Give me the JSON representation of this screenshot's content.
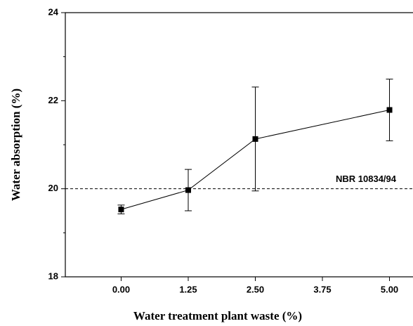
{
  "chart_data": {
    "type": "line",
    "x_label": "Water treatment plant waste (%)",
    "y_label": "Water absorption (%)",
    "x": [
      0,
      1.25,
      2.5,
      5
    ],
    "values": [
      19.53,
      19.97,
      21.13,
      21.79
    ],
    "errors": [
      0.1,
      0.47,
      1.18,
      0.7
    ],
    "color": "#000000",
    "xlim": [
      -1.04,
      6.04
    ],
    "ylim": [
      18,
      24
    ],
    "xticks": [
      {
        "value": 0,
        "label": "0.00"
      },
      {
        "value": 1.25,
        "label": "1.25"
      },
      {
        "value": 2.5,
        "label": "2.50"
      },
      {
        "value": 3.75,
        "label": "3.75"
      },
      {
        "value": 5,
        "label": "5.00"
      }
    ],
    "yticks": [
      18,
      20,
      22,
      24
    ],
    "yminorticks": [
      19,
      21,
      23
    ],
    "reference_line": {
      "value": 20,
      "label": "NBR 10834/94"
    }
  }
}
